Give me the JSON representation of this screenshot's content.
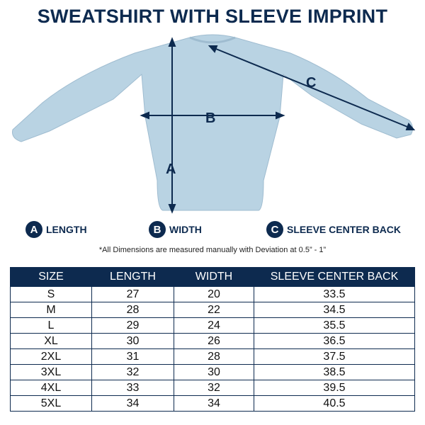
{
  "title": "SWEATSHIRT WITH SLEEVE IMPRINT",
  "diagram": {
    "labels": {
      "a": "A",
      "b": "B",
      "c": "C"
    },
    "garment_color": "#b9d3e3"
  },
  "legend": [
    {
      "letter": "A",
      "label": "LENGTH"
    },
    {
      "letter": "B",
      "label": "WIDTH"
    },
    {
      "letter": "C",
      "label": "SLEEVE CENTER BACK"
    }
  ],
  "note": "*All Dimensions are measured manually with Deviation at 0.5” - 1”",
  "table": {
    "headers": [
      "SIZE",
      "LENGTH",
      "WIDTH",
      "SLEEVE CENTER BACK"
    ],
    "rows": [
      [
        "S",
        "27",
        "20",
        "33.5"
      ],
      [
        "M",
        "28",
        "22",
        "34.5"
      ],
      [
        "L",
        "29",
        "24",
        "35.5"
      ],
      [
        "XL",
        "30",
        "26",
        "36.5"
      ],
      [
        "2XL",
        "31",
        "28",
        "37.5"
      ],
      [
        "3XL",
        "32",
        "30",
        "38.5"
      ],
      [
        "4XL",
        "33",
        "32",
        "39.5"
      ],
      [
        "5XL",
        "34",
        "34",
        "40.5"
      ]
    ]
  },
  "colors": {
    "navy": "#0d2a4f"
  }
}
